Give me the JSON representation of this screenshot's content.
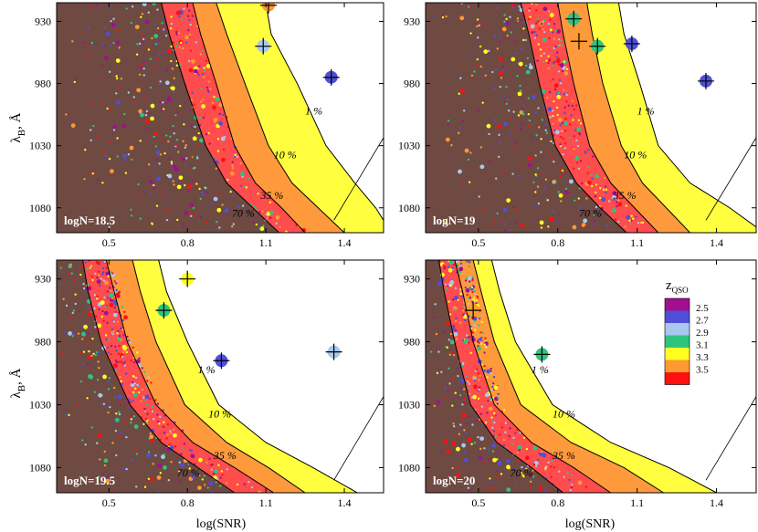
{
  "figure": {
    "shared_xlabel": "log(SNR)",
    "shared_ylabel": "λB, Å",
    "ylabel_main": "λ",
    "ylabel_sub": "B",
    "ylabel_tail": ", Å",
    "legend": {
      "title_main": "z",
      "title_sub": "QSO",
      "entries": [
        {
          "label": "2.5",
          "color": "#a0108f"
        },
        {
          "label": "2.7",
          "color": "#4f4fd8"
        },
        {
          "label": "2.9",
          "color": "#a8c8f0"
        },
        {
          "label": "3.1",
          "color": "#2fc47c"
        },
        {
          "label": "3.3",
          "color": "#ffff20"
        },
        {
          "label": "3.5",
          "color": "#ff9a30"
        },
        {
          "label": "",
          "color": "#ff1010"
        }
      ]
    }
  },
  "chart_data": [
    {
      "type": "scatter",
      "panel_label": "logN=18.5",
      "xlim": [
        0.3,
        1.55
      ],
      "ylim": [
        1100,
        915
      ],
      "x_ticks": [
        "0.5",
        "0.8",
        "1.1",
        "1.4"
      ],
      "y_ticks": [
        "930",
        "980",
        "1030",
        "1080"
      ],
      "contour_labels": [
        "1 %",
        "10 %",
        "35 %",
        "70 %"
      ],
      "contours_x_by_y": {
        "y": [
          915,
          940,
          980,
          1030,
          1060,
          1080,
          1100
        ],
        "70": [
          0.7,
          0.73,
          0.79,
          0.87,
          0.95,
          1.05,
          1.15
        ],
        "35": [
          0.82,
          0.85,
          0.91,
          0.98,
          1.06,
          1.16,
          1.25
        ],
        "10": [
          0.91,
          0.95,
          1.02,
          1.11,
          1.2,
          1.3,
          1.4
        ],
        "1": [
          1.1,
          1.12,
          1.22,
          1.33,
          1.44,
          1.52,
          1.58
        ]
      },
      "big_points": [
        {
          "x": 1.11,
          "y": 917,
          "z": "3.5"
        },
        {
          "x": 1.09,
          "y": 950,
          "z": "2.9"
        },
        {
          "x": 1.35,
          "y": 975,
          "z": "2.7"
        }
      ]
    },
    {
      "type": "scatter",
      "panel_label": "logN=19",
      "xlim": [
        0.3,
        1.55
      ],
      "ylim": [
        1100,
        915
      ],
      "x_ticks": [
        "0.5",
        "0.8",
        "1.1",
        "1.4"
      ],
      "y_ticks": [
        "930",
        "980",
        "1030",
        "1080"
      ],
      "contour_labels": [
        "1 %",
        "10 %",
        "35 %",
        "70 %"
      ],
      "contours_x_by_y": {
        "y": [
          915,
          940,
          980,
          1030,
          1060,
          1080,
          1100
        ],
        "70": [
          0.66,
          0.69,
          0.73,
          0.79,
          0.87,
          0.96,
          1.06
        ],
        "35": [
          0.8,
          0.82,
          0.86,
          0.92,
          1.0,
          1.09,
          1.18
        ],
        "10": [
          0.91,
          0.93,
          0.97,
          1.04,
          1.12,
          1.21,
          1.3
        ],
        "1": [
          1.03,
          1.05,
          1.11,
          1.18,
          1.3,
          1.45,
          1.58
        ]
      },
      "big_points": [
        {
          "x": 0.86,
          "y": 928,
          "z": "3.1"
        },
        {
          "x": 0.95,
          "y": 950,
          "z": "3.1"
        },
        {
          "x": 1.08,
          "y": 948,
          "z": "2.7"
        },
        {
          "x": 1.36,
          "y": 978,
          "z": "2.7"
        },
        {
          "x": 0.88,
          "y": 946,
          "z": "3.5"
        }
      ]
    },
    {
      "type": "scatter",
      "panel_label": "logN=19.5",
      "xlim": [
        0.3,
        1.55
      ],
      "ylim": [
        1100,
        915
      ],
      "x_ticks": [
        "0.5",
        "0.8",
        "1.1",
        "1.4"
      ],
      "y_ticks": [
        "930",
        "980",
        "1030",
        "1080"
      ],
      "contour_labels": [
        "1 %",
        "10 %",
        "35 %",
        "70 %"
      ],
      "contours_x_by_y": {
        "y": [
          915,
          940,
          980,
          1030,
          1060,
          1080,
          1100
        ],
        "70": [
          0.4,
          0.42,
          0.47,
          0.58,
          0.7,
          0.84,
          0.98
        ],
        "35": [
          0.49,
          0.52,
          0.57,
          0.68,
          0.82,
          0.98,
          1.13
        ],
        "10": [
          0.59,
          0.62,
          0.68,
          0.79,
          0.95,
          1.11,
          1.25
        ],
        "1": [
          0.69,
          0.72,
          0.8,
          0.92,
          1.1,
          1.28,
          1.45
        ]
      },
      "big_points": [
        {
          "x": 0.8,
          "y": 930,
          "z": "3.3"
        },
        {
          "x": 0.71,
          "y": 955,
          "z": "3.1"
        },
        {
          "x": 0.93,
          "y": 995,
          "z": "2.7"
        },
        {
          "x": 1.36,
          "y": 988,
          "z": "2.9"
        }
      ]
    },
    {
      "type": "scatter",
      "panel_label": "logN=20",
      "xlim": [
        0.3,
        1.55
      ],
      "ylim": [
        1100,
        915
      ],
      "x_ticks": [
        "0.5",
        "0.8",
        "1.1",
        "1.4"
      ],
      "y_ticks": [
        "930",
        "980",
        "1030",
        "1080"
      ],
      "contour_labels": [
        "1 %",
        "10 %",
        "35 %",
        "70 %"
      ],
      "contours_x_by_y": {
        "y": [
          915,
          940,
          980,
          1030,
          1060,
          1080,
          1100
        ],
        "70": [
          0.35,
          0.37,
          0.41,
          0.47,
          0.57,
          0.7,
          0.82
        ],
        "35": [
          0.41,
          0.44,
          0.48,
          0.56,
          0.7,
          0.86,
          1.0
        ],
        "10": [
          0.48,
          0.51,
          0.56,
          0.66,
          0.85,
          1.05,
          1.2
        ],
        "1": [
          0.55,
          0.58,
          0.64,
          0.78,
          1.0,
          1.22,
          1.4
        ]
      },
      "big_points": [
        {
          "x": 0.48,
          "y": 955,
          "z": "3.5"
        },
        {
          "x": 0.74,
          "y": 990,
          "z": "3.1"
        }
      ]
    }
  ]
}
